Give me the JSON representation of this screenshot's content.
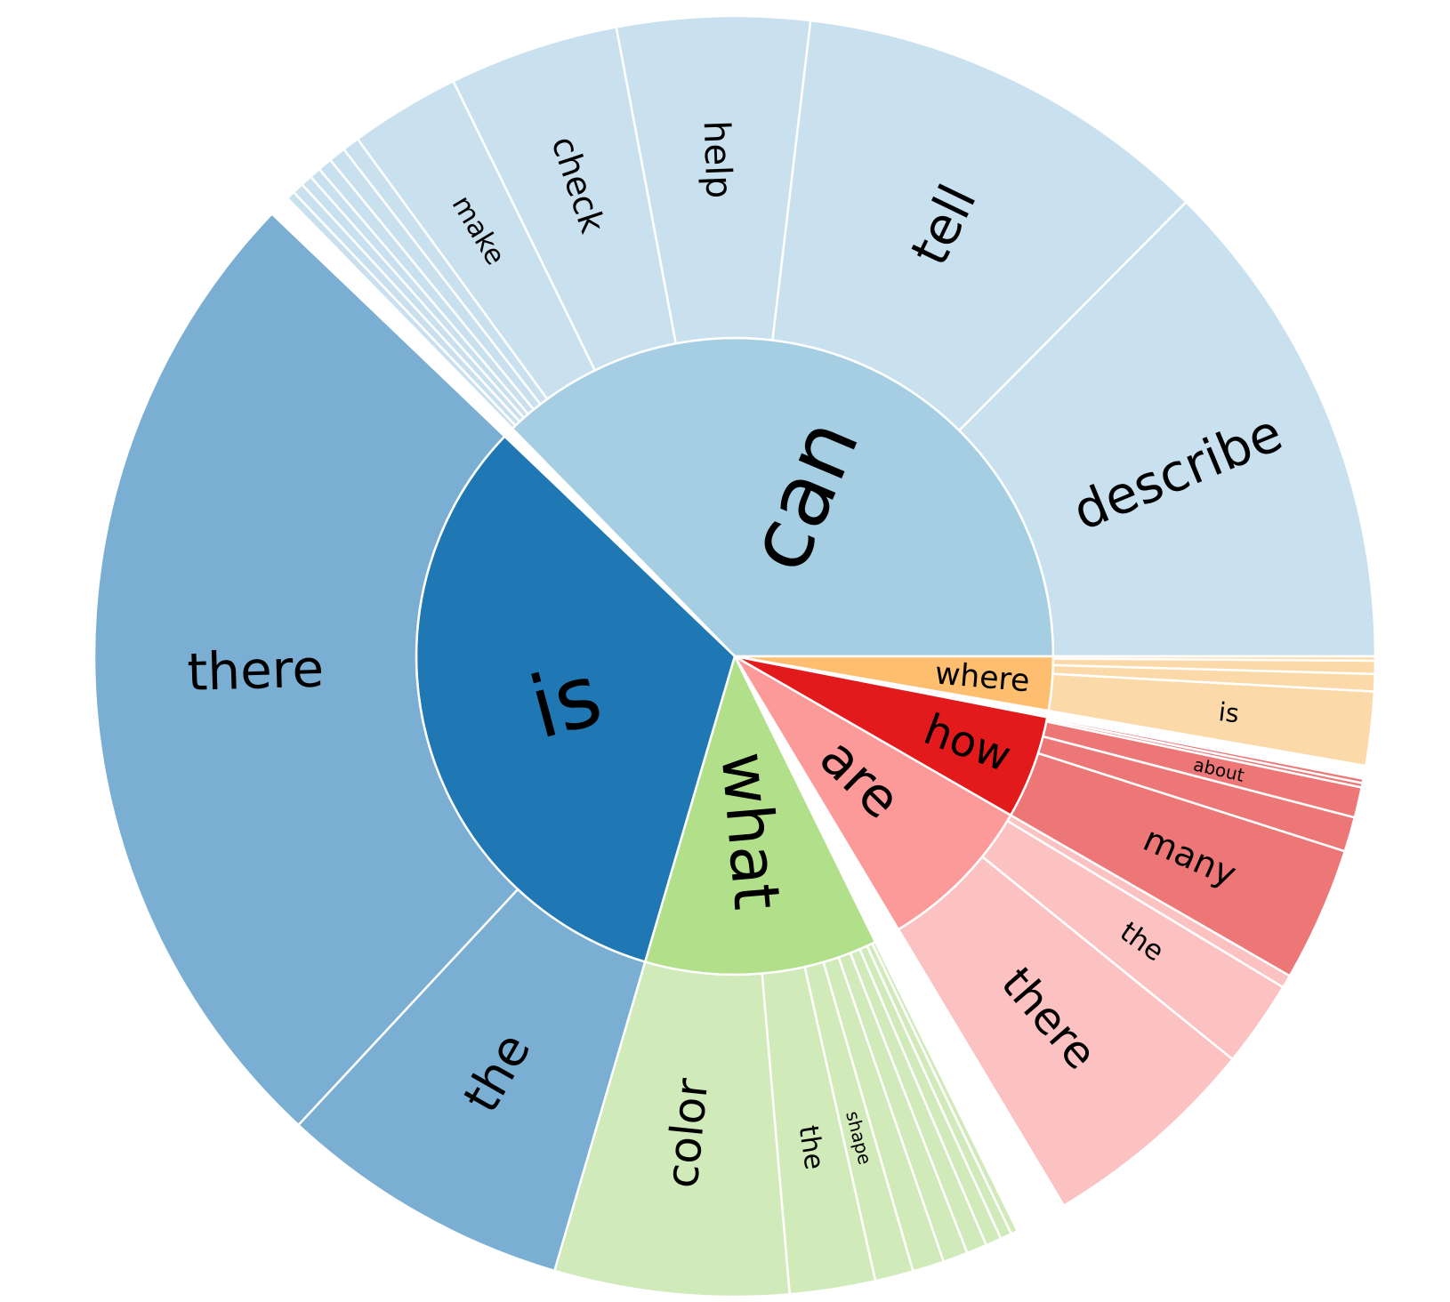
{
  "chart_data": {
    "type": "sunburst",
    "title": "",
    "levels": 2,
    "nodes": [
      {
        "label": "can",
        "value": 34.1,
        "color": "#a6cee3",
        "child_color": "#c9e0ee",
        "children": [
          {
            "label": "describe",
            "value": 8.8
          },
          {
            "label": "tell",
            "value": 7.4
          },
          {
            "label": "help",
            "value": 3.4
          },
          {
            "label": "check",
            "value": 3.0
          },
          {
            "label": "make",
            "value": 1.95
          },
          {
            "label": "",
            "value": 0.3
          },
          {
            "label": "",
            "value": 0.3
          },
          {
            "label": "",
            "value": 0.25
          },
          {
            "label": "",
            "value": 0.2
          },
          {
            "label": "",
            "value": 0.2
          },
          {
            "label": "",
            "value": 0.2
          },
          {
            "label": "",
            "value": 0.15
          }
        ]
      },
      {
        "label": "",
        "value": 0.5,
        "color": "#ffffff",
        "child_color": "#ffffff",
        "children": []
      },
      {
        "label": "is",
        "value": 29.8,
        "color": "#1f78b4",
        "child_color": "#7aaed2",
        "children": [
          {
            "label": "there",
            "value": 21.5
          },
          {
            "label": "the",
            "value": 6.3
          }
        ]
      },
      {
        "label": "what",
        "value": 10.8,
        "color": "#b2df8a",
        "child_color": "#d0eab9",
        "children": [
          {
            "label": "color",
            "value": 5.2
          },
          {
            "label": "the",
            "value": 1.9
          },
          {
            "label": "shape",
            "value": 0.85
          },
          {
            "label": "",
            "value": 0.7
          },
          {
            "label": "",
            "value": 0.55
          },
          {
            "label": "",
            "value": 0.45
          },
          {
            "label": "",
            "value": 0.35
          },
          {
            "label": "",
            "value": 0.25
          },
          {
            "label": "",
            "value": 0.15
          }
        ]
      },
      {
        "label": "",
        "value": 1.2,
        "color": "#ffffff",
        "child_color": "#ffffff",
        "children": []
      },
      {
        "label": "are",
        "value": 7.4,
        "color": "#fb9a99",
        "child_color": "#fbc2c1",
        "children": [
          {
            "label": "there",
            "value": 5.1
          },
          {
            "label": "the",
            "value": 2.0
          },
          {
            "label": "",
            "value": 0.3
          }
        ]
      },
      {
        "label": "how",
        "value": 4.8,
        "color": "#e31a1c",
        "child_color": "#ed7677",
        "children": [
          {
            "label": "many",
            "value": 3.1
          },
          {
            "label": "",
            "value": 0.8
          },
          {
            "label": "about",
            "value": 0.7
          },
          {
            "label": "",
            "value": 0.1
          },
          {
            "label": "",
            "value": 0.1
          }
        ]
      },
      {
        "label": "",
        "value": 0.3,
        "color": "#ffffff",
        "child_color": "#ffffff",
        "children": []
      },
      {
        "label": "where",
        "value": 2.5,
        "color": "#fdbf6f",
        "child_color": "#fcd9a9",
        "children": [
          {
            "label": "is",
            "value": 1.7
          },
          {
            "label": "",
            "value": 0.4
          },
          {
            "label": "",
            "value": 0.3
          },
          {
            "label": "",
            "value": 0.1
          }
        ]
      }
    ]
  }
}
